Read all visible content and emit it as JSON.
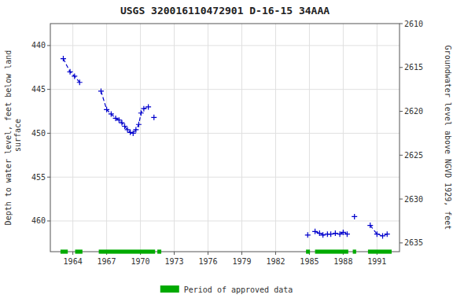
{
  "chart_data": {
    "type": "line",
    "title": "USGS 320016110472901 D-16-15 34AAA",
    "y_label": "Depth to water level, feet below land\n surface",
    "y2_label": "Groundwater level above NGVD 1929, feet",
    "xlim": [
      1962.0,
      1993.0
    ],
    "xticks": [
      1964,
      1967,
      1970,
      1973,
      1976,
      1979,
      1982,
      1985,
      1988,
      1991
    ],
    "ylim": [
      463.5,
      437.5
    ],
    "yticks": [
      440,
      445,
      450,
      455,
      460
    ],
    "y2lim": [
      2636,
      2610
    ],
    "y2ticks": [
      2610,
      2615,
      2620,
      2625,
      2630,
      2635
    ],
    "grid": true,
    "legend": "bottom",
    "x": [
      1963.15,
      1963.75,
      1964.15,
      1964.6,
      null,
      1966.5,
      1967.0,
      1967.4,
      1967.8,
      1968.1,
      1968.35,
      1968.6,
      1968.85,
      1969.1,
      1969.35,
      1969.6,
      1969.85,
      1970.05,
      1970.3,
      1970.7,
      null,
      1971.2,
      null,
      1984.85,
      null,
      1985.5,
      1985.9,
      1986.2,
      1986.6,
      1986.9,
      1987.3,
      1987.7,
      1988.0,
      1988.35,
      null,
      1989.0,
      null,
      1990.4,
      1991.0,
      1991.5,
      1991.9
    ],
    "series": [
      {
        "color": "#0000cc",
        "marker": "plus",
        "line_style": "dashed",
        "values": [
          441.5,
          443.0,
          443.5,
          444.2,
          null,
          445.2,
          447.3,
          447.8,
          448.3,
          448.5,
          448.8,
          449.2,
          449.6,
          449.9,
          450.0,
          449.6,
          449.0,
          447.7,
          447.2,
          447.0,
          null,
          448.2,
          null,
          461.6,
          null,
          461.2,
          461.4,
          461.6,
          461.5,
          461.5,
          461.4,
          461.5,
          461.3,
          461.5,
          null,
          459.5,
          null,
          460.5,
          461.5,
          461.7,
          461.5
        ]
      }
    ],
    "approved_periods": {
      "name": "Period of approved data",
      "color": "#00aa00",
      "x_start": [
        1962.9,
        1964.2,
        1966.3,
        1971.5,
        1984.7,
        1985.5,
        1988.85,
        1990.2
      ],
      "x_end": [
        1963.55,
        1964.85,
        1971.3,
        1971.85,
        1985.05,
        1988.45,
        1989.15,
        1992.3
      ]
    }
  }
}
